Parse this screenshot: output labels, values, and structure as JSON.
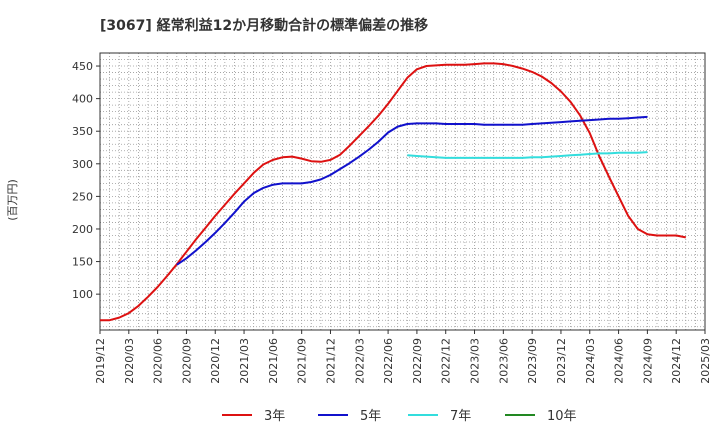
{
  "chart_data": {
    "type": "line",
    "title": "[3067]  経常利益12か月移動合計の標準偏差の推移",
    "ylabel": "(百万円)",
    "xlabel": "",
    "ylim": [
      45,
      470
    ],
    "yticks": [
      100,
      150,
      200,
      250,
      300,
      350,
      400,
      450
    ],
    "xticks": [
      "2019/12",
      "2020/03",
      "2020/06",
      "2020/09",
      "2020/12",
      "2021/03",
      "2021/06",
      "2021/09",
      "2021/12",
      "2022/03",
      "2022/06",
      "2022/09",
      "2022/12",
      "2023/03",
      "2023/06",
      "2023/09",
      "2023/12",
      "2024/03",
      "2024/06",
      "2024/09",
      "2024/12",
      "2025/03"
    ],
    "grid": true,
    "legend_position": "bottom",
    "series": [
      {
        "name": "3年",
        "color": "#dd1111",
        "start_index": 0,
        "values": [
          60,
          60,
          64,
          71,
          82,
          96,
          111,
          128,
          146,
          165,
          184,
          202,
          220,
          237,
          254,
          270,
          286,
          299,
          306,
          310,
          311,
          308,
          304,
          303,
          306,
          314,
          328,
          343,
          358,
          374,
          392,
          412,
          432,
          445,
          450,
          451,
          452,
          452,
          452,
          453,
          454,
          454,
          453,
          450,
          446,
          441,
          434,
          424,
          411,
          395,
          374,
          347,
          311,
          280,
          250,
          220,
          200,
          192,
          190,
          190,
          190,
          187
        ]
      },
      {
        "name": "5年",
        "color": "#1111cc",
        "start_index": 8,
        "values": [
          145,
          155,
          167,
          180,
          194,
          209,
          225,
          242,
          255,
          263,
          268,
          270,
          270,
          270,
          272,
          276,
          283,
          292,
          301,
          311,
          322,
          334,
          348,
          357,
          361,
          362,
          362,
          362,
          361,
          361,
          361,
          361,
          360,
          360,
          360,
          360,
          360,
          361,
          362,
          363,
          364,
          365,
          366,
          367,
          368,
          369,
          369,
          370,
          371,
          372
        ]
      },
      {
        "name": "7年",
        "color": "#33dddd",
        "start_index": 32,
        "values": [
          313,
          312,
          311,
          310,
          309,
          309,
          309,
          309,
          309,
          309,
          309,
          309,
          309,
          310,
          310,
          311,
          312,
          313,
          314,
          315,
          316,
          316,
          317,
          317,
          317,
          318
        ]
      },
      {
        "name": "10年",
        "color": "#228822",
        "start_index": null,
        "values": []
      }
    ]
  }
}
